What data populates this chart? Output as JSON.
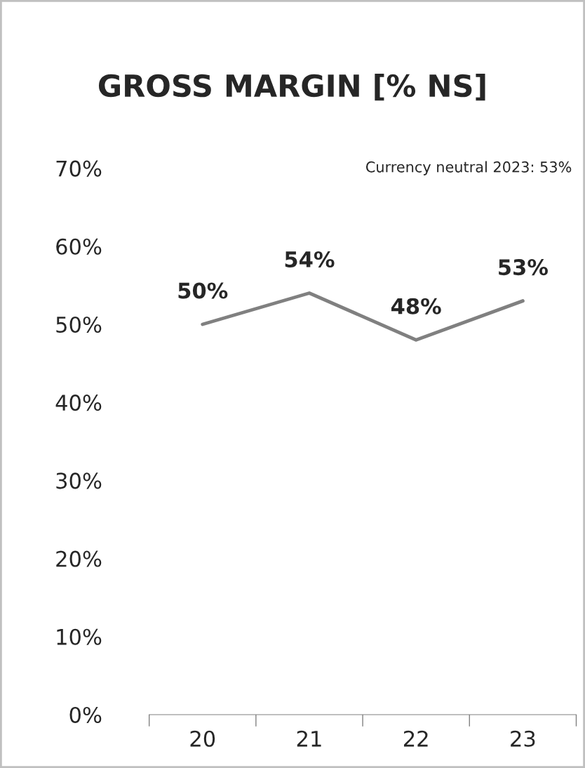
{
  "chart_data": {
    "type": "line",
    "title": "GROSS MARGIN [% NS]",
    "categories": [
      "20",
      "21",
      "22",
      "23"
    ],
    "series": [
      {
        "color": "#808080",
        "values": [
          50,
          54,
          48,
          53
        ],
        "value_labels": [
          "50%",
          "54%",
          "48%",
          "53%"
        ]
      }
    ],
    "ylim": [
      0,
      70
    ],
    "yticks": [
      {
        "value": 0,
        "label": "0%"
      },
      {
        "value": 10,
        "label": "10%"
      },
      {
        "value": 20,
        "label": "20%"
      },
      {
        "value": 30,
        "label": "30%"
      },
      {
        "value": 40,
        "label": "40%"
      },
      {
        "value": 50,
        "label": "50%"
      },
      {
        "value": 60,
        "label": "60%"
      },
      {
        "value": 70,
        "label": "70%"
      }
    ],
    "annotations": [
      "Currency neutral 2023: 53%"
    ],
    "grid": false,
    "legend": false,
    "marker": "none",
    "line_style": "solid"
  }
}
